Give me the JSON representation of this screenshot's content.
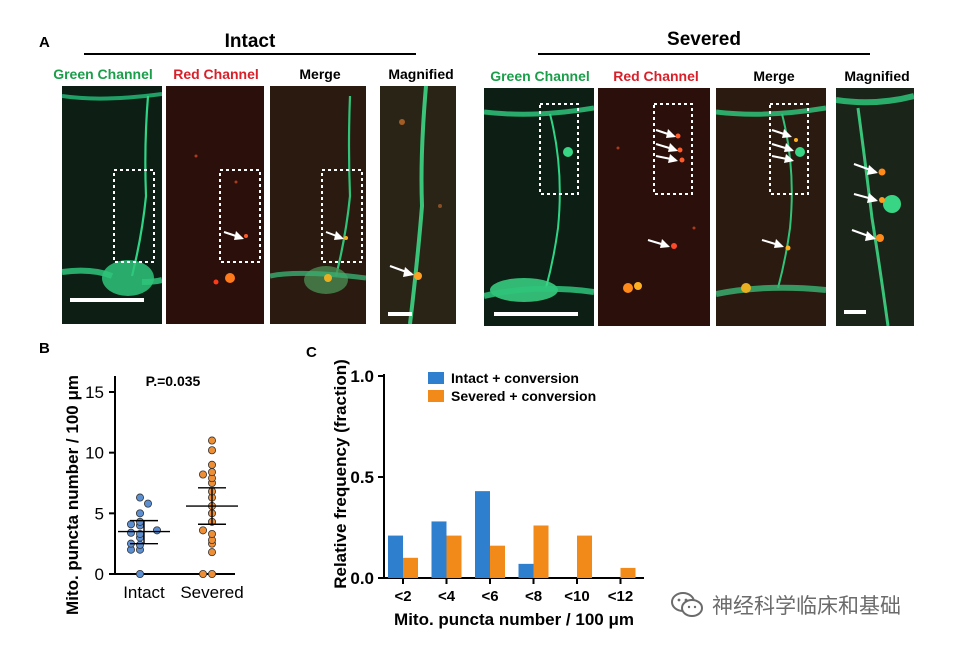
{
  "panel_a": {
    "letter": "A",
    "groups": [
      {
        "title": "Intact",
        "labels": [
          "Green Channel",
          "Red Channel",
          "Merge",
          "Magnified"
        ]
      },
      {
        "title": "Severed",
        "labels": [
          "Green Channel",
          "Red Channel",
          "Merge",
          "Magnified"
        ]
      }
    ]
  },
  "panel_b": {
    "letter": "B"
  },
  "panel_c": {
    "letter": "C"
  },
  "colors": {
    "green_label": "#1a9e4a",
    "red_label": "#d8202a",
    "intact": "#2f7fcf",
    "severed": "#f28a1a",
    "intact_dot": "#5b8fd2",
    "severed_dot": "#ef8f35"
  },
  "chart_data": [
    {
      "type": "scatter",
      "ylabel": "Mito. puncta number  / 100 μm",
      "categories": [
        "Intact",
        "Severed"
      ],
      "yticks": [
        "0",
        "5",
        "10",
        "15"
      ],
      "ylim": [
        0,
        15
      ],
      "annotation": "P.=0.035",
      "series": [
        {
          "name": "Intact",
          "values": [
            0.0,
            2.0,
            2.0,
            2.4,
            2.5,
            3.0,
            3.3,
            3.4,
            3.6,
            4.0,
            4.1,
            4.3,
            5.0,
            5.8,
            6.3
          ],
          "mean": 3.5,
          "ci": [
            2.5,
            4.4
          ]
        },
        {
          "name": "Severed",
          "values": [
            0.0,
            0.0,
            1.8,
            2.5,
            2.8,
            3.3,
            3.6,
            4.3,
            5.0,
            5.6,
            6.3,
            6.8,
            7.5,
            7.9,
            8.2,
            8.4,
            9.0,
            10.2,
            11.0
          ],
          "mean": 5.6,
          "ci": [
            4.1,
            7.1
          ]
        }
      ]
    },
    {
      "type": "bar",
      "ylabel": "Relative frequency (fraction)",
      "xlabel": "Mito. puncta number  / 100 μm",
      "categories": [
        "<2",
        "<4",
        "<6",
        "<8",
        "<10",
        "<12"
      ],
      "yticks": [
        "0.0",
        "0.5",
        "1.0"
      ],
      "ylim": [
        0,
        1.0
      ],
      "legend_position": "top",
      "series": [
        {
          "name": "Intact + conversion",
          "values": [
            0.21,
            0.28,
            0.43,
            0.07,
            0.0,
            0.0
          ]
        },
        {
          "name": "Severed + conversion",
          "values": [
            0.1,
            0.21,
            0.16,
            0.26,
            0.21,
            0.05
          ]
        }
      ]
    }
  ],
  "watermark": "神经科学临床和基础"
}
